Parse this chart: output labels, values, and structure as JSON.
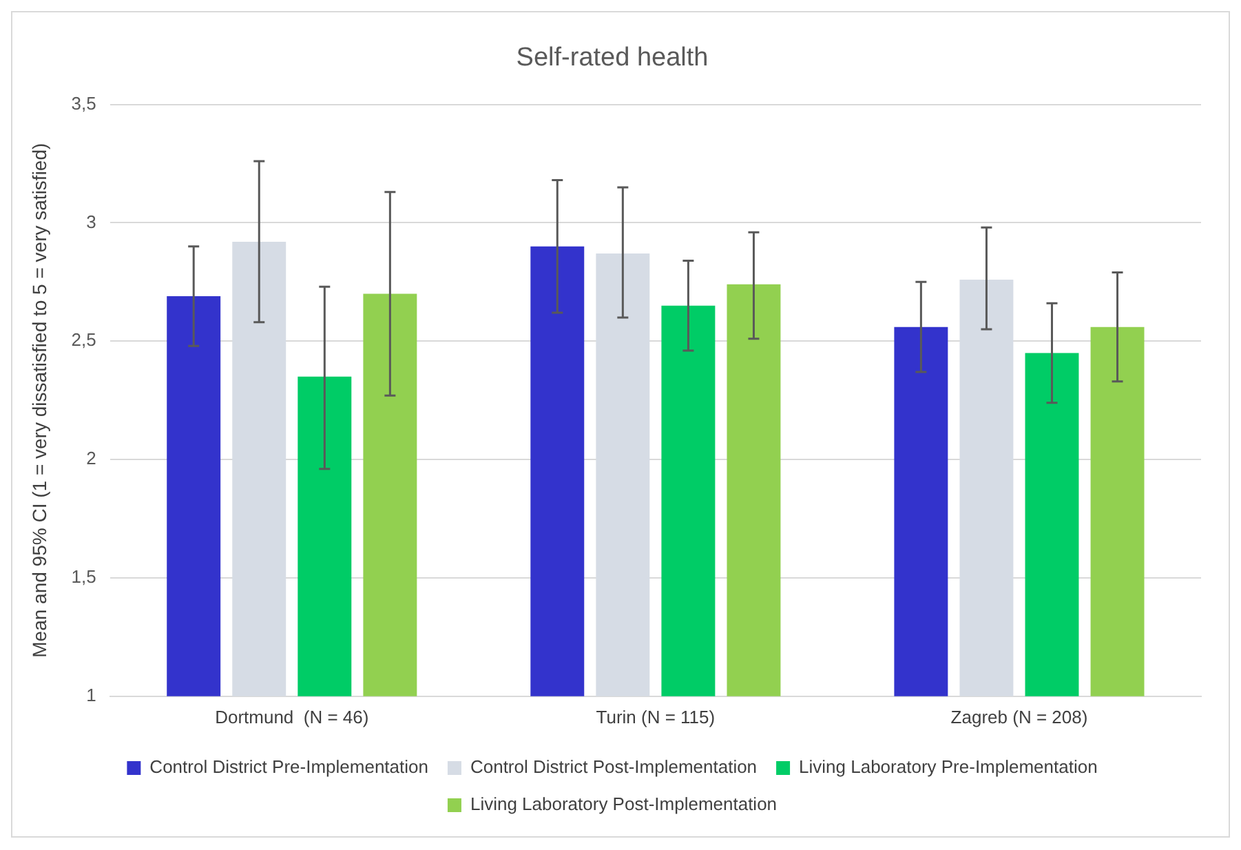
{
  "chart_data": {
    "type": "bar",
    "title": "Self-rated health",
    "ylabel": "Mean and 95% CI (1 = very dissatisfied to 5 = very satisfied)",
    "categories": [
      "Dortmund  (N = 46)",
      "Turin (N = 115)",
      "Zagreb (N = 208)"
    ],
    "series": [
      {
        "name": "Control District Pre-Implementation",
        "color": "#3333cc",
        "values": [
          2.69,
          2.9,
          2.56
        ],
        "errors": [
          [
            2.48,
            2.9
          ],
          [
            2.62,
            3.18
          ],
          [
            2.37,
            2.75
          ]
        ]
      },
      {
        "name": "Control District Post-Implementation",
        "color": "#d6dce5",
        "values": [
          2.92,
          2.87,
          2.76
        ],
        "errors": [
          [
            2.58,
            3.26
          ],
          [
            2.6,
            3.15
          ],
          [
            2.55,
            2.98
          ]
        ]
      },
      {
        "name": "Living Laboratory Pre-Implementation",
        "color": "#00cc66",
        "values": [
          2.35,
          2.65,
          2.45
        ],
        "errors": [
          [
            1.96,
            2.73
          ],
          [
            2.46,
            2.84
          ],
          [
            2.24,
            2.66
          ]
        ]
      },
      {
        "name": "Living Laboratory Post-Implementation",
        "color": "#92d050",
        "values": [
          2.7,
          2.74,
          2.56
        ],
        "errors": [
          [
            2.27,
            3.13
          ],
          [
            2.51,
            2.96
          ],
          [
            2.33,
            2.79
          ]
        ]
      }
    ],
    "ylim": [
      1,
      3.5
    ],
    "yticks": [
      1,
      {
        "value": 1.5,
        "label": "1,5"
      },
      2,
      {
        "value": 2.5,
        "label": "2,5"
      },
      3,
      {
        "value": 3.5,
        "label": "3,5"
      }
    ],
    "grid": "y",
    "legend": "bottom"
  }
}
